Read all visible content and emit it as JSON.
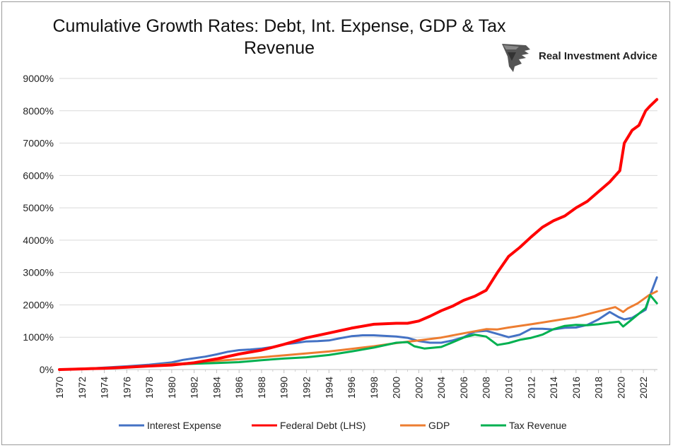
{
  "title_line1": "Cumulative Growth Rates: Debt, Int. Expense, GDP & Tax",
  "title_line2": "Revenue",
  "brand": {
    "name": "Real Investment Advice",
    "logo_icon": "eagle-head-icon"
  },
  "chart_data": {
    "type": "line",
    "title": "Cumulative Growth Rates: Debt, Int. Expense, GDP & Tax Revenue",
    "xlabel": "",
    "ylabel": "",
    "xlim": [
      1970,
      2023.25
    ],
    "ylim": [
      0,
      9000
    ],
    "y_ticks": [
      0,
      1000,
      2000,
      3000,
      4000,
      5000,
      6000,
      7000,
      8000,
      9000
    ],
    "y_tick_labels": [
      "0%",
      "1000%",
      "2000%",
      "3000%",
      "4000%",
      "5000%",
      "6000%",
      "7000%",
      "8000%",
      "9000%"
    ],
    "x_tick_labels": [
      "1970",
      "1972",
      "1974",
      "1976",
      "1978",
      "1980",
      "1982",
      "1984",
      "1986",
      "1988",
      "1990",
      "1992",
      "1994",
      "1996",
      "1998",
      "2000",
      "2002",
      "2004",
      "2006",
      "2008",
      "2010",
      "2012",
      "2014",
      "2016",
      "2018",
      "2020",
      "2022"
    ],
    "grid": "horizontal",
    "legend_position": "bottom",
    "series": [
      {
        "name": "Interest Expense",
        "color": "#4472C4",
        "points": [
          [
            1970,
            0
          ],
          [
            1972,
            20
          ],
          [
            1974,
            60
          ],
          [
            1976,
            100
          ],
          [
            1978,
            150
          ],
          [
            1980,
            220
          ],
          [
            1981,
            300
          ],
          [
            1982,
            350
          ],
          [
            1983,
            400
          ],
          [
            1984,
            470
          ],
          [
            1985,
            550
          ],
          [
            1986,
            600
          ],
          [
            1987,
            620
          ],
          [
            1988,
            650
          ],
          [
            1989,
            700
          ],
          [
            1990,
            780
          ],
          [
            1991,
            820
          ],
          [
            1992,
            870
          ],
          [
            1993,
            880
          ],
          [
            1994,
            900
          ],
          [
            1995,
            970
          ],
          [
            1996,
            1030
          ],
          [
            1997,
            1060
          ],
          [
            1998,
            1060
          ],
          [
            1999,
            1040
          ],
          [
            2000,
            1020
          ],
          [
            2001,
            980
          ],
          [
            2002,
            880
          ],
          [
            2003,
            830
          ],
          [
            2004,
            830
          ],
          [
            2005,
            900
          ],
          [
            2006,
            1000
          ],
          [
            2007,
            1170
          ],
          [
            2008,
            1200
          ],
          [
            2009,
            1100
          ],
          [
            2010,
            1000
          ],
          [
            2011,
            1080
          ],
          [
            2012,
            1260
          ],
          [
            2013,
            1260
          ],
          [
            2014,
            1240
          ],
          [
            2015,
            1290
          ],
          [
            2016,
            1300
          ],
          [
            2017,
            1380
          ],
          [
            2018,
            1550
          ],
          [
            2019,
            1780
          ],
          [
            2019.8,
            1620
          ],
          [
            2020.3,
            1550
          ],
          [
            2021,
            1600
          ],
          [
            2021.7,
            1750
          ],
          [
            2022.2,
            1850
          ],
          [
            2022.6,
            2300
          ],
          [
            2023.2,
            2850
          ]
        ]
      },
      {
        "name": "Federal Debt (LHS)",
        "color": "#FF0000",
        "points": [
          [
            1970,
            0
          ],
          [
            1972,
            20
          ],
          [
            1974,
            40
          ],
          [
            1976,
            70
          ],
          [
            1978,
            110
          ],
          [
            1980,
            140
          ],
          [
            1982,
            210
          ],
          [
            1984,
            330
          ],
          [
            1986,
            480
          ],
          [
            1988,
            600
          ],
          [
            1990,
            780
          ],
          [
            1992,
            980
          ],
          [
            1994,
            1130
          ],
          [
            1996,
            1280
          ],
          [
            1998,
            1400
          ],
          [
            2000,
            1430
          ],
          [
            2001,
            1430
          ],
          [
            2002,
            1500
          ],
          [
            2003,
            1650
          ],
          [
            2004,
            1820
          ],
          [
            2005,
            1960
          ],
          [
            2006,
            2140
          ],
          [
            2007,
            2270
          ],
          [
            2008,
            2450
          ],
          [
            2009,
            3000
          ],
          [
            2010,
            3500
          ],
          [
            2011,
            3780
          ],
          [
            2012,
            4100
          ],
          [
            2013,
            4400
          ],
          [
            2014,
            4600
          ],
          [
            2015,
            4750
          ],
          [
            2016,
            5000
          ],
          [
            2017,
            5200
          ],
          [
            2018,
            5500
          ],
          [
            2019,
            5800
          ],
          [
            2019.9,
            6150
          ],
          [
            2020.3,
            7000
          ],
          [
            2021,
            7400
          ],
          [
            2021.6,
            7550
          ],
          [
            2022.2,
            8000
          ],
          [
            2022.6,
            8150
          ],
          [
            2023.2,
            8350
          ]
        ]
      },
      {
        "name": "GDP",
        "color": "#ED7D31",
        "points": [
          [
            1970,
            0
          ],
          [
            1972,
            30
          ],
          [
            1974,
            50
          ],
          [
            1976,
            80
          ],
          [
            1978,
            120
          ],
          [
            1980,
            170
          ],
          [
            1982,
            210
          ],
          [
            1984,
            270
          ],
          [
            1986,
            320
          ],
          [
            1988,
            380
          ],
          [
            1990,
            440
          ],
          [
            1992,
            500
          ],
          [
            1994,
            560
          ],
          [
            1996,
            640
          ],
          [
            1998,
            720
          ],
          [
            2000,
            820
          ],
          [
            2002,
            900
          ],
          [
            2004,
            990
          ],
          [
            2006,
            1120
          ],
          [
            2008,
            1250
          ],
          [
            2009,
            1240
          ],
          [
            2010,
            1300
          ],
          [
            2012,
            1400
          ],
          [
            2014,
            1510
          ],
          [
            2016,
            1620
          ],
          [
            2018,
            1800
          ],
          [
            2019.5,
            1930
          ],
          [
            2020.2,
            1780
          ],
          [
            2020.6,
            1890
          ],
          [
            2021.5,
            2050
          ],
          [
            2022.5,
            2300
          ],
          [
            2023.2,
            2420
          ]
        ]
      },
      {
        "name": "Tax Revenue",
        "color": "#00B050",
        "points": [
          [
            1970,
            0
          ],
          [
            1972,
            20
          ],
          [
            1974,
            40
          ],
          [
            1976,
            70
          ],
          [
            1978,
            110
          ],
          [
            1980,
            150
          ],
          [
            1982,
            180
          ],
          [
            1984,
            200
          ],
          [
            1986,
            230
          ],
          [
            1988,
            290
          ],
          [
            1990,
            340
          ],
          [
            1992,
            380
          ],
          [
            1994,
            450
          ],
          [
            1996,
            560
          ],
          [
            1998,
            680
          ],
          [
            2000,
            830
          ],
          [
            2001,
            850
          ],
          [
            2001.6,
            720
          ],
          [
            2002.5,
            650
          ],
          [
            2004,
            700
          ],
          [
            2005,
            840
          ],
          [
            2006,
            990
          ],
          [
            2007,
            1080
          ],
          [
            2008,
            1020
          ],
          [
            2009,
            760
          ],
          [
            2010,
            820
          ],
          [
            2011,
            920
          ],
          [
            2012,
            980
          ],
          [
            2013,
            1080
          ],
          [
            2014,
            1250
          ],
          [
            2015,
            1350
          ],
          [
            2016,
            1380
          ],
          [
            2017,
            1370
          ],
          [
            2018,
            1400
          ],
          [
            2019,
            1450
          ],
          [
            2019.8,
            1480
          ],
          [
            2020.2,
            1330
          ],
          [
            2020.8,
            1500
          ],
          [
            2021.5,
            1700
          ],
          [
            2022.2,
            1900
          ],
          [
            2022.6,
            2300
          ],
          [
            2023.2,
            2050
          ]
        ]
      }
    ]
  }
}
